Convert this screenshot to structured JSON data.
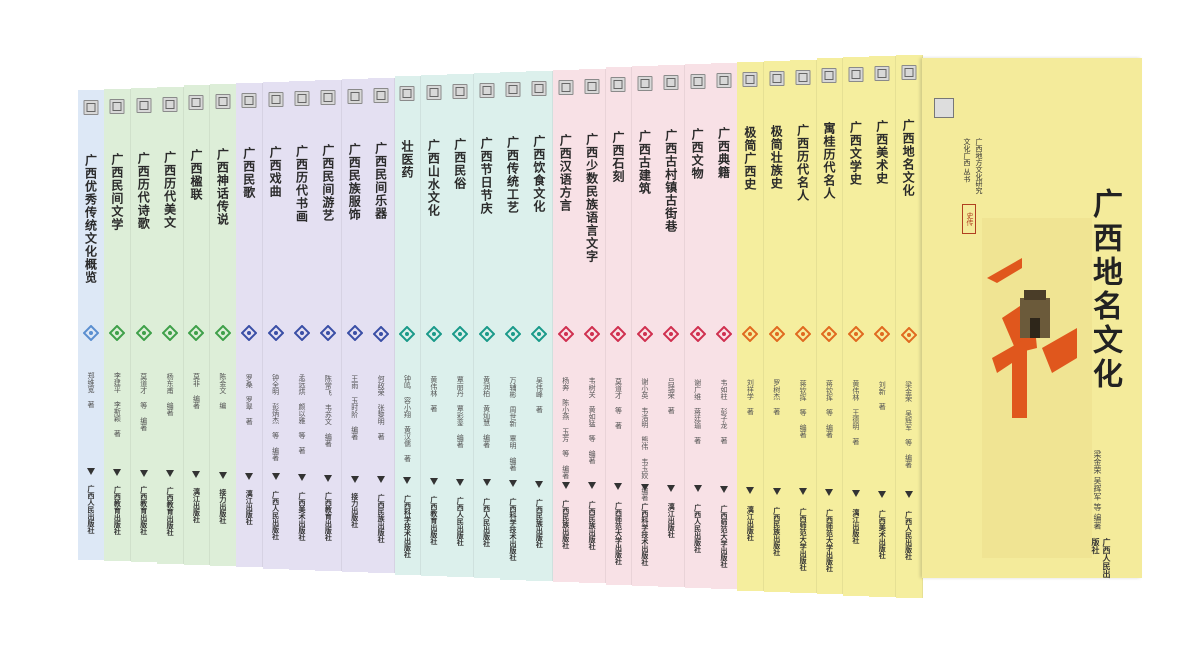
{
  "front_cover": {
    "title": "广西地名文化",
    "authors": "梁金荣 吴辉军 等 编著",
    "publisher": "广西人民出版社",
    "series_line1": "文化广西 丛书",
    "series_line2": "广西地方文化研究",
    "seal": "史传",
    "color": "#f4eb9b",
    "accent": "#e0571d"
  },
  "books": [
    {
      "title": "广西优秀传统文化概览",
      "author": "郑维宽 著",
      "publisher": "广西人民出版社",
      "color": "#dde8f6",
      "icon": "lozenge-ornament-icon"
    },
    {
      "title": "广西民间文学",
      "author": "李建平 李斯颖 著",
      "publisher": "广西教育出版社",
      "color": "#ddeed8",
      "icon": "leaf-ornament-icon"
    },
    {
      "title": "广西历代诗歌",
      "author": "莫道才 等 编著",
      "publisher": "广西教育出版社",
      "color": "#ddeed8",
      "icon": "knot-ornament-icon"
    },
    {
      "title": "广西历代美文",
      "author": "杨东甫 编著",
      "publisher": "广西教育出版社",
      "color": "#ddeed8",
      "icon": "swirl-ornament-icon"
    },
    {
      "title": "广西楹联",
      "author": "莫非 编著",
      "publisher": "漓江出版社",
      "color": "#ddeed8",
      "icon": "diamond-ornament-icon"
    },
    {
      "title": "广西神话传说",
      "author": "陈金文 编",
      "publisher": "接力出版社",
      "color": "#ddeed8",
      "icon": "circle-ornament-icon"
    },
    {
      "title": "广西民歌",
      "author": "罗桑 罗翠 著",
      "publisher": "漓江出版社",
      "color": "#e4e0f2",
      "icon": "wave-ornament-icon"
    },
    {
      "title": "广西戏曲",
      "author": "钟全明 彭炳杰 等 编著",
      "publisher": "广西人民出版社",
      "color": "#e4e0f2",
      "icon": "chain-ornament-icon"
    },
    {
      "title": "广西历代书画",
      "author": "孟远烘 颜以雅 等 著",
      "publisher": "广西美术出版社",
      "color": "#e4e0f2",
      "icon": "brush-ornament-icon"
    },
    {
      "title": "广西民间游艺",
      "author": "陈常飞 韦苏文 编著",
      "publisher": "广西教育出版社",
      "color": "#e4e0f2",
      "icon": "bird-ornament-icon"
    },
    {
      "title": "广西民族服饰",
      "author": "王雨 玉时阶 编著",
      "publisher": "接力出版社",
      "color": "#e4e0f2",
      "icon": "flower-ornament-icon"
    },
    {
      "title": "广西民间乐器",
      "author": "何政荣 张黎明 著",
      "publisher": "广西民族出版社",
      "color": "#e4e0f2",
      "icon": "hook-ornament-icon"
    },
    {
      "title": "壮医药",
      "author": "钟鸣 容小翔 黄汉儒 著",
      "publisher": "广西科学技术出版社",
      "color": "#dcf0ec",
      "icon": "pine-ornament-icon"
    },
    {
      "title": "广西山水文化",
      "author": "黄伟林 著",
      "publisher": "广西教育出版社",
      "color": "#dcf0ec",
      "icon": "mountain-ornament-icon"
    },
    {
      "title": "广西民俗",
      "author": "覃丽丹 覃彩銮 编著",
      "publisher": "广西人民出版社",
      "color": "#dcf0ec",
      "icon": "cloud-ornament-icon"
    },
    {
      "title": "广西节日节庆",
      "author": "黄润柏 黄灿慧 编著",
      "publisher": "广西人民出版社",
      "color": "#dcf0ec",
      "icon": "wing-ornament-icon"
    },
    {
      "title": "广西传统工艺",
      "author": "万辅彬 周世新 覃明 编著",
      "publisher": "广西科学技术出版社",
      "color": "#dcf0ec",
      "icon": "peak-ornament-icon"
    },
    {
      "title": "广西饮食文化",
      "author": "吴伟峰 著",
      "publisher": "广西民族出版社",
      "color": "#dcf0ec",
      "icon": "star-ornament-icon"
    },
    {
      "title": "广西汉语方言",
      "author": "杨奔 陈小燕 玉芳 等 编著",
      "publisher": "广西民族出版社",
      "color": "#f8e1e6",
      "icon": "cross-ornament-icon"
    },
    {
      "title": "广西少数民族语言文字",
      "author": "韦树关 黄如猛 等 编著",
      "publisher": "广西民族出版社",
      "color": "#f8e1e6",
      "icon": "sun-ornament-icon"
    },
    {
      "title": "广西石刻",
      "author": "莫道才 等 著",
      "publisher": "广西师范大学出版社",
      "color": "#f8e1e6",
      "icon": "wheel-ornament-icon"
    },
    {
      "title": "广西古建筑",
      "author": "谢小英 韦浩明 熊伟 韦玉姣 编著",
      "publisher": "广西科学技术出版社",
      "color": "#f8e1e6",
      "icon": "hourglass-ornament-icon"
    },
    {
      "title": "广西古村镇古街巷",
      "author": "吕瑞荣 著",
      "publisher": "漓江出版社",
      "color": "#f8e1e6",
      "icon": "snow-ornament-icon"
    },
    {
      "title": "广西文物",
      "author": "谢广维 蒋廷瑜 著",
      "publisher": "广西人民出版社",
      "color": "#f8e1e6",
      "icon": "medallion-ornament-icon"
    },
    {
      "title": "广西典籍",
      "author": "韦如柱 彭子龙 著",
      "publisher": "广西师范大学出版社",
      "color": "#f8e1e6",
      "icon": "fan-ornament-icon"
    },
    {
      "title": "极简广西史",
      "author": "刘祥学 著",
      "publisher": "漓江出版社",
      "color": "#f5ee9e",
      "icon": "fish-ornament-icon"
    },
    {
      "title": "极简壮族史",
      "author": "罗树杰 著",
      "publisher": "广西民族出版社",
      "color": "#f5ee9e",
      "icon": "antler-ornament-icon"
    },
    {
      "title": "广西历代名人",
      "author": "蒋钦挥 等 编著",
      "publisher": "广西师范大学出版社",
      "color": "#f5ee9e",
      "icon": "frog-ornament-icon"
    },
    {
      "title": "寓桂历代名人",
      "author": "蒋钦挥 等 编著",
      "publisher": "广西师范大学出版社",
      "color": "#f5ee9e",
      "icon": "horn-ornament-icon"
    },
    {
      "title": "广西文学史",
      "author": "黄伟林 王德明 著",
      "publisher": "漓江出版社",
      "color": "#f5ee9e",
      "icon": "scroll-ornament-icon"
    },
    {
      "title": "广西美术史",
      "author": "刘新 著",
      "publisher": "广西美术出版社",
      "color": "#f5ee9e",
      "icon": "dancer-ornament-icon"
    },
    {
      "title": "广西地名文化",
      "author": "梁金荣 吴辉军 等 编著",
      "publisher": "广西人民出版社",
      "color": "#f5ee9e",
      "icon": "glyph-ornament-icon"
    }
  ]
}
